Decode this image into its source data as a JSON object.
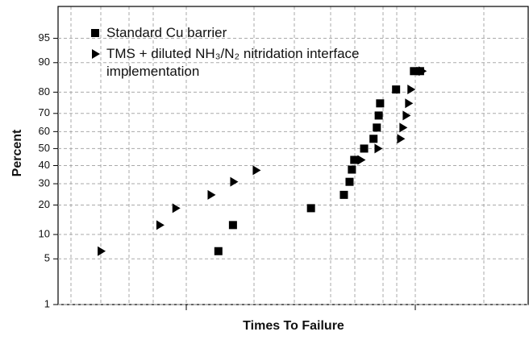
{
  "chart_data": {
    "type": "scatter",
    "x_label": "Times To Failure",
    "y_label": "Percent",
    "y_scale": "probability",
    "xlim": [
      0,
      100
    ],
    "ylim": [
      1,
      98.3
    ],
    "yticks": [
      1,
      5,
      10,
      20,
      30,
      40,
      50,
      60,
      70,
      80,
      90,
      95
    ],
    "grid": true,
    "legend": "top-left",
    "series": [
      {
        "name": "Standard Cu barrier",
        "color": "#000000",
        "marker": "square",
        "x": [
          34.1,
          37.2,
          53.8,
          60.8,
          62.0,
          62.5,
          63.0,
          65.1,
          67.1,
          67.8,
          68.2,
          68.5,
          71.9,
          75.7,
          77.0
        ],
        "values": [
          6.3,
          12.7,
          18.7,
          24.5,
          31,
          37.7,
          43.3,
          50,
          55.8,
          62.3,
          68.9,
          75,
          81.1,
          87.6,
          87.6
        ]
      },
      {
        "name": "TMS + diluted NH₃/N₂ nitridation interface implementation",
        "color": "#000000",
        "marker": "triangle",
        "x": [
          9.1,
          21.6,
          25.0,
          32.5,
          37.3,
          42.1,
          64.4,
          68.0,
          72.8,
          73.3,
          74.0,
          74.5,
          75.0,
          77.4
        ],
        "values": [
          6.3,
          12.7,
          18.7,
          24.5,
          31,
          37.3,
          43.3,
          50,
          55.8,
          62.3,
          68.9,
          75,
          81.1,
          87.6
        ]
      }
    ]
  }
}
